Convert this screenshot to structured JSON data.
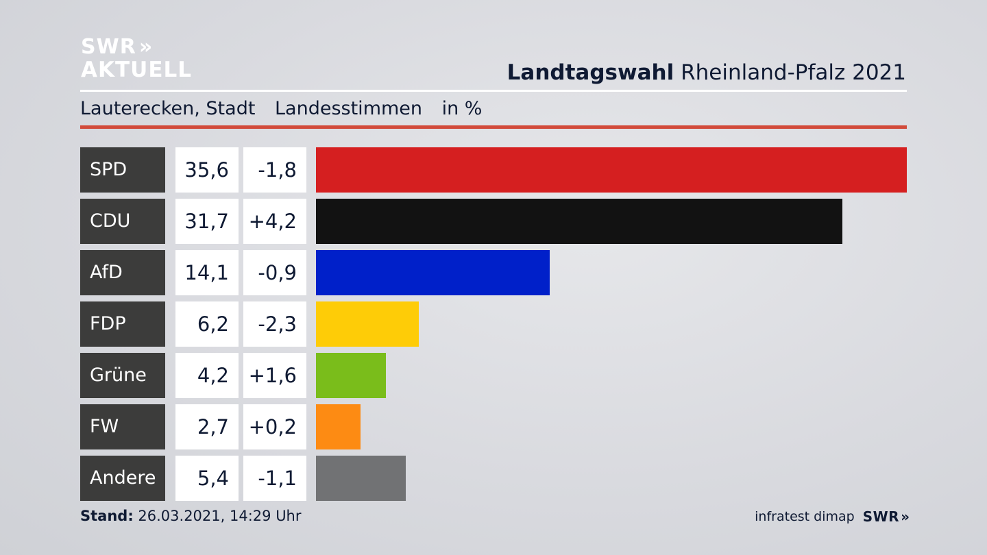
{
  "logo": {
    "line1": "SWR",
    "chevrons": "»",
    "line2": "AKTUELL"
  },
  "header": {
    "title_bold": "Landtagswahl",
    "title_rest": "Rheinland-Pfalz 2021",
    "location": "Lauterecken, Stadt",
    "vote_type": "Landesstimmen",
    "unit": "in %"
  },
  "chart_data": {
    "type": "bar",
    "orientation": "horizontal",
    "categories": [
      "SPD",
      "CDU",
      "AfD",
      "FDP",
      "Grüne",
      "FW",
      "Andere"
    ],
    "values": [
      35.6,
      31.7,
      14.1,
      6.2,
      4.2,
      2.7,
      5.4
    ],
    "value_labels": [
      "35,6",
      "31,7",
      "14,1",
      "6,2",
      "4,2",
      "2,7",
      "5,4"
    ],
    "changes": [
      "-1,8",
      "+4,2",
      "-0,9",
      "-2,3",
      "+1,6",
      "+0,2",
      "-1,1"
    ],
    "colors": [
      "#d51f20",
      "#121212",
      "#0020c9",
      "#fecc07",
      "#7abd1b",
      "#fd8b13",
      "#717274"
    ],
    "xlim": [
      0,
      35.6
    ]
  },
  "footer": {
    "stand_label": "Stand:",
    "stand_value": "26.03.2021, 14:29 Uhr",
    "source": "infratest dimap",
    "brand": "SWR",
    "brand_chevrons": "»"
  }
}
